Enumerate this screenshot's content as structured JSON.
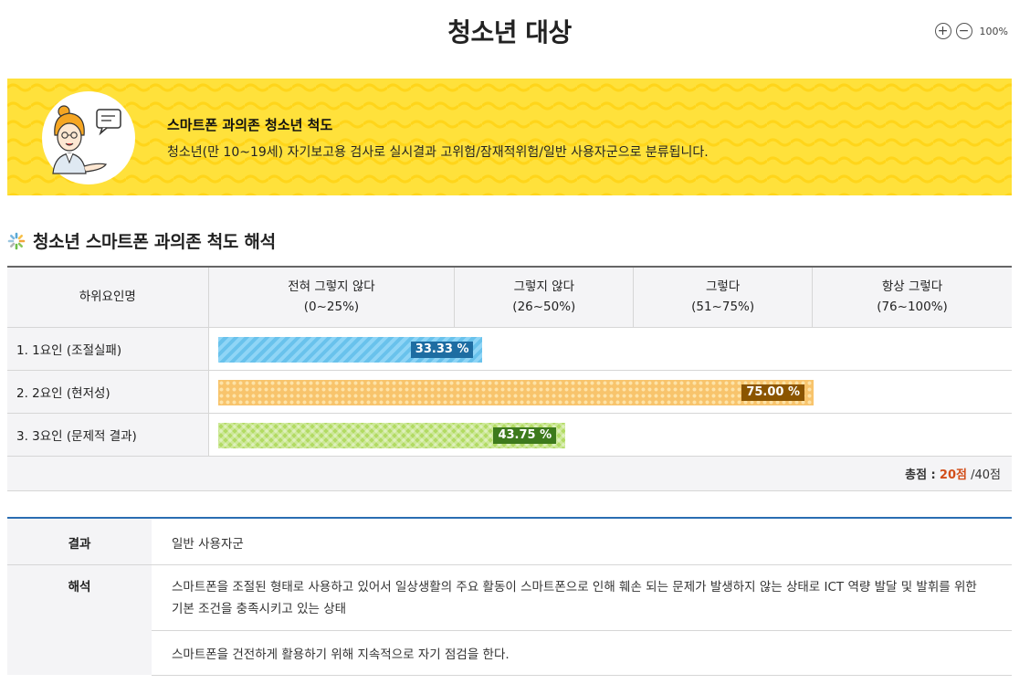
{
  "page": {
    "title": "청소년 대상"
  },
  "zoom": {
    "level": "100%",
    "plus_icon": "plus-circle-icon",
    "minus_icon": "minus-circle-icon"
  },
  "banner": {
    "title": "스마트폰 과의존 청소년 척도",
    "description": "청소년(만 10~19세) 자기보고용 검사로 실시결과 고위험/잠재적위험/일반 사용자군으로 분류됩니다.",
    "background": "#ffe13b"
  },
  "section": {
    "title": "청소년 스마트폰 과의존 척도 해석",
    "icon": "sparkle-icon"
  },
  "table": {
    "header_factor": "하위요인명",
    "columns": [
      {
        "line1": "전혀 그렇지 않다",
        "line2": "(0~25%)"
      },
      {
        "line1": "그렇지 않다",
        "line2": "(26~50%)"
      },
      {
        "line1": "그렇다",
        "line2": "(51~75%)"
      },
      {
        "line1": "항상 그렇다",
        "line2": "(76~100%)"
      }
    ],
    "rows": [
      {
        "name": "1. 1요인 (조절실패)",
        "percent": 33.33,
        "label": "33.33 %",
        "color": "#69c2ec"
      },
      {
        "name": "2. 2요인 (현저성)",
        "percent": 75.0,
        "label": "75.00 %",
        "color": "#f8c46c"
      },
      {
        "name": "3. 3요인 (문제적 결과)",
        "percent": 43.75,
        "label": "43.75 %",
        "color": "#b2db63"
      }
    ],
    "total": {
      "label": "총점 :",
      "score": "20점",
      "max": "/40점"
    }
  },
  "result": {
    "result_label": "결과",
    "result_value": "일반 사용자군",
    "interp_label": "해석",
    "interp_lines": [
      "스마트폰을 조절된 형태로 사용하고 있어서 일상생활의 주요 활동이 스마트폰으로 인해 훼손 되는 문제가 발생하지 않는 상태로 ICT 역량 발달 및 발휘를 위한",
      "기본 조건을 충족시키고 있는 상태"
    ],
    "advice": "스마트폰을 건전하게 활용하기 위해 지속적으로 자기 점검을 한다."
  }
}
